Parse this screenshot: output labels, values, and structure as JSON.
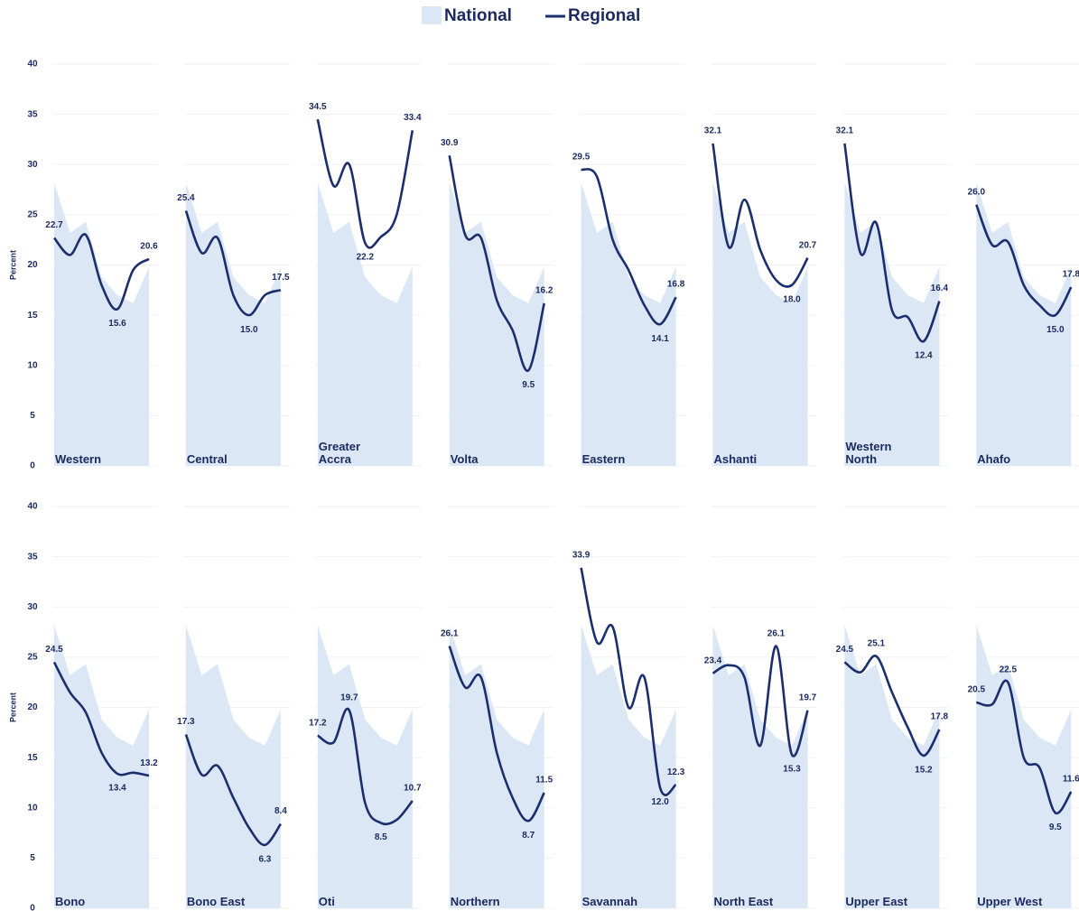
{
  "chart_data": {
    "type": "small-multiples",
    "categories": [
      null,
      null,
      null,
      null,
      null,
      null,
      null
    ],
    "ylim": [
      0,
      40
    ],
    "yticks": [
      0,
      5,
      10,
      15,
      20,
      25,
      30,
      35,
      40
    ],
    "y_label": "Percent",
    "grid": true,
    "national": {
      "name": "National",
      "color": "#dce7f5",
      "values": [
        28.2,
        23.2,
        24.3,
        18.8,
        17.0,
        16.2,
        19.8
      ]
    },
    "regional": {
      "name": "Regional",
      "color": "#1b2f6e"
    },
    "panels": [
      {
        "title": "Western",
        "values": [
          22.7,
          21.0,
          23.0,
          18.0,
          15.6,
          19.5,
          20.6
        ],
        "value_labels": [
          "22.7",
          null,
          null,
          null,
          "15.6",
          null,
          "20.6"
        ]
      },
      {
        "title": "Central",
        "values": [
          25.4,
          21.2,
          22.7,
          17.0,
          15.0,
          17.0,
          17.5
        ],
        "value_labels": [
          "25.4",
          null,
          null,
          null,
          "15.0",
          null,
          "17.5"
        ]
      },
      {
        "title": "Greater Accra",
        "values": [
          34.5,
          27.9,
          30.0,
          22.2,
          22.8,
          25.0,
          33.4
        ],
        "value_labels": [
          "34.5",
          null,
          null,
          "22.2",
          null,
          null,
          "33.4"
        ]
      },
      {
        "title": "Volta",
        "values": [
          30.9,
          23.0,
          22.7,
          16.5,
          13.5,
          9.5,
          16.2
        ],
        "value_labels": [
          "30.9",
          null,
          null,
          null,
          null,
          "9.5",
          "16.2"
        ]
      },
      {
        "title": "Eastern",
        "values": [
          29.5,
          28.8,
          22.5,
          19.5,
          16.0,
          14.1,
          16.8
        ],
        "value_labels": [
          "29.5",
          null,
          null,
          null,
          null,
          "14.1",
          "16.8"
        ]
      },
      {
        "title": "Ashanti",
        "values": [
          32.1,
          21.8,
          26.5,
          21.5,
          18.5,
          18.0,
          20.7
        ],
        "value_labels": [
          "32.1",
          null,
          null,
          null,
          null,
          "18.0",
          "20.7"
        ]
      },
      {
        "title": "Western North",
        "values": [
          32.1,
          21.2,
          24.2,
          15.5,
          14.8,
          12.4,
          16.4
        ],
        "value_labels": [
          "32.1",
          null,
          null,
          null,
          null,
          "12.4",
          "16.4"
        ]
      },
      {
        "title": "Ahafo",
        "values": [
          26.0,
          22.0,
          22.3,
          18.0,
          16.0,
          15.0,
          17.8
        ],
        "value_labels": [
          "26.0",
          null,
          null,
          null,
          null,
          "15.0",
          "17.8"
        ]
      },
      {
        "title": "Bono",
        "values": [
          24.5,
          21.5,
          19.5,
          15.5,
          13.4,
          13.5,
          13.2
        ],
        "value_labels": [
          "24.5",
          null,
          null,
          null,
          "13.4",
          null,
          "13.2"
        ]
      },
      {
        "title": "Bono East",
        "values": [
          17.3,
          13.3,
          14.2,
          11.0,
          8.0,
          6.3,
          8.4
        ],
        "value_labels": [
          "17.3",
          null,
          null,
          null,
          null,
          "6.3",
          "8.4"
        ]
      },
      {
        "title": "Oti",
        "values": [
          17.2,
          16.5,
          19.7,
          10.5,
          8.5,
          8.8,
          10.7
        ],
        "value_labels": [
          "17.2",
          null,
          "19.7",
          null,
          "8.5",
          null,
          "10.7"
        ]
      },
      {
        "title": "Northern",
        "values": [
          26.1,
          22.0,
          23.0,
          15.5,
          11.0,
          8.7,
          11.5
        ],
        "value_labels": [
          "26.1",
          null,
          null,
          null,
          null,
          "8.7",
          "11.5"
        ]
      },
      {
        "title": "Savannah",
        "values": [
          33.9,
          26.5,
          28.0,
          20.0,
          23.0,
          12.0,
          12.3
        ],
        "value_labels": [
          "33.9",
          null,
          null,
          null,
          null,
          "12.0",
          "12.3"
        ]
      },
      {
        "title": "North East",
        "values": [
          23.4,
          24.2,
          23.0,
          16.2,
          26.1,
          15.3,
          19.7
        ],
        "value_labels": [
          "23.4",
          null,
          null,
          null,
          "26.1",
          "15.3",
          "19.7"
        ]
      },
      {
        "title": "Upper East",
        "values": [
          24.5,
          23.5,
          25.1,
          21.5,
          18.0,
          15.2,
          17.8
        ],
        "value_labels": [
          "24.5",
          null,
          "25.1",
          null,
          null,
          "15.2",
          "17.8"
        ]
      },
      {
        "title": "Upper West",
        "values": [
          20.5,
          20.3,
          22.5,
          15.0,
          14.0,
          9.5,
          11.6
        ],
        "value_labels": [
          "20.5",
          null,
          "22.5",
          null,
          null,
          "9.5",
          "11.6"
        ]
      }
    ]
  }
}
